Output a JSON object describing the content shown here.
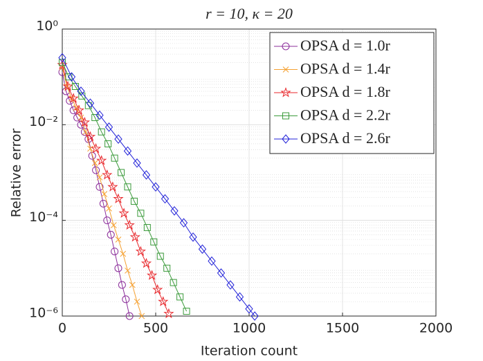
{
  "chart_data": {
    "type": "line",
    "title": "r = 10, κ = 20",
    "xlabel": "Iteration count",
    "ylabel": "Relative error",
    "xlim": [
      0,
      2000
    ],
    "xticks": [
      0,
      500,
      1000,
      1500,
      2000
    ],
    "ylim": [
      1e-06,
      1
    ],
    "yscale": "log",
    "yticks": [
      {
        "value": 1,
        "label": "10⁰"
      },
      {
        "value": 0.01,
        "label": "10⁻²"
      },
      {
        "value": 0.0001,
        "label": "10⁻⁴"
      },
      {
        "value": 1e-06,
        "label": "10⁻⁶"
      }
    ],
    "grid": true,
    "minor_grid": true,
    "legend": "top-right",
    "series": [
      {
        "name": "OPSA d = 1.0r",
        "color": "#8b2c9a",
        "marker": "o",
        "x": [
          0,
          20,
          40,
          60,
          80,
          100,
          120,
          140,
          160,
          180,
          200,
          220,
          240,
          260,
          280,
          300,
          320,
          340,
          360
        ],
        "values": [
          0.126,
          0.0501,
          0.0316,
          0.02,
          0.0141,
          0.01,
          0.00708,
          0.00501,
          0.00224,
          0.00112,
          0.000501,
          0.000224,
          0.0001,
          5.01e-05,
          2.24e-05,
          1e-05,
          4.47e-06,
          2.24e-06,
          1e-06
        ]
      },
      {
        "name": "OPSA d = 1.4r",
        "color": "#f5a030",
        "marker": "x",
        "x": [
          0,
          25,
          50,
          75,
          100,
          125,
          150,
          175,
          200,
          225,
          250,
          275,
          300,
          325,
          350,
          375,
          400,
          425
        ],
        "values": [
          0.158,
          0.0631,
          0.0355,
          0.0224,
          0.0141,
          0.00708,
          0.00316,
          0.00158,
          0.000794,
          0.000355,
          0.000178,
          7.94e-05,
          3.98e-05,
          2e-05,
          8.91e-06,
          4.47e-06,
          2e-06,
          1e-06
        ]
      },
      {
        "name": "OPSA d = 1.8r",
        "color": "#e8262a",
        "marker": "star",
        "x": [
          0,
          30,
          60,
          90,
          120,
          150,
          180,
          210,
          240,
          270,
          300,
          330,
          360,
          390,
          420,
          450,
          480,
          510,
          540,
          570
        ],
        "values": [
          0.178,
          0.0631,
          0.0355,
          0.02,
          0.0112,
          0.00562,
          0.00316,
          0.00178,
          0.000891,
          0.000501,
          0.000282,
          0.000141,
          7.94e-05,
          4.47e-05,
          2.24e-05,
          1.26e-05,
          7.08e-06,
          3.55e-06,
          2e-06,
          1.12e-06
        ]
      },
      {
        "name": "OPSA d = 2.2r",
        "color": "#3a9a3a",
        "marker": "square",
        "x": [
          0,
          35,
          70,
          105,
          140,
          175,
          210,
          245,
          280,
          315,
          350,
          385,
          420,
          455,
          490,
          525,
          560,
          595,
          630,
          665
        ],
        "values": [
          0.2,
          0.1,
          0.0631,
          0.0398,
          0.0251,
          0.0141,
          0.00708,
          0.00398,
          0.002,
          0.001,
          0.000501,
          0.000251,
          0.000141,
          7.08e-05,
          3.55e-05,
          1.78e-05,
          1e-05,
          5.01e-06,
          2.51e-06,
          1.26e-06
        ]
      },
      {
        "name": "OPSA d = 2.6r",
        "color": "#2020d8",
        "marker": "diamond",
        "x": [
          0,
          50,
          100,
          150,
          200,
          250,
          300,
          350,
          400,
          450,
          500,
          550,
          600,
          650,
          700,
          750,
          800,
          850,
          900,
          950,
          1000,
          1030
        ],
        "values": [
          0.251,
          0.1,
          0.0501,
          0.0282,
          0.0158,
          0.00891,
          0.00501,
          0.00282,
          0.00158,
          0.000891,
          0.000501,
          0.000282,
          0.000158,
          8.91e-05,
          4.47e-05,
          2.51e-05,
          1.41e-05,
          7.94e-06,
          4.47e-06,
          2.51e-06,
          1.41e-06,
          1e-06
        ]
      }
    ]
  }
}
